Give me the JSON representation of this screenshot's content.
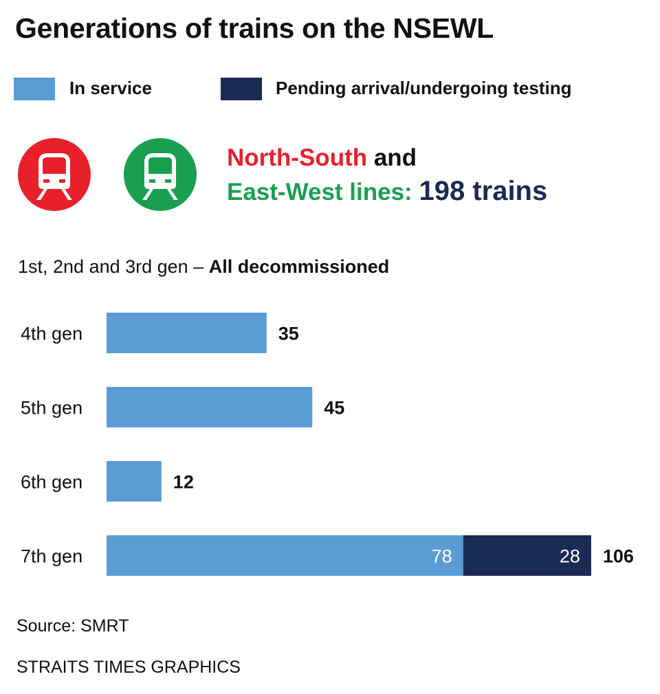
{
  "title": "Generations of trains on the NSEWL",
  "legend": [
    {
      "label": "In service",
      "color": "#5b9bd5"
    },
    {
      "label": "Pending arrival/undergoing testing",
      "color": "#1a2b54"
    }
  ],
  "icons": {
    "north_south": {
      "name": "train-icon",
      "color": "#e8202a"
    },
    "east_west": {
      "name": "train-icon",
      "color": "#18a050"
    }
  },
  "headline": {
    "ns_text": "North-South",
    "and_text": " and",
    "ew_text": "East-West lines:",
    "total_text": "198 trains",
    "ns_color": "#e8202a",
    "ew_color": "#18a050",
    "total_color": "#1a2b54"
  },
  "subhead": {
    "prefix": "1st, 2nd and 3rd gen – ",
    "emphasis": "All decommissioned"
  },
  "chart_data": {
    "type": "bar",
    "orientation": "horizontal",
    "stacked": true,
    "categories": [
      "4th gen",
      "5th gen",
      "6th gen",
      "7th gen"
    ],
    "series": [
      {
        "name": "In service",
        "values": [
          35,
          45,
          12,
          78
        ]
      },
      {
        "name": "Pending arrival/undergoing testing",
        "values": [
          0,
          0,
          0,
          28
        ]
      }
    ],
    "totals": [
      35,
      45,
      12,
      106
    ],
    "legend_position": "top-left",
    "grid": false
  },
  "source": "Source: SMRT",
  "credit": "STRAITS TIMES GRAPHICS"
}
